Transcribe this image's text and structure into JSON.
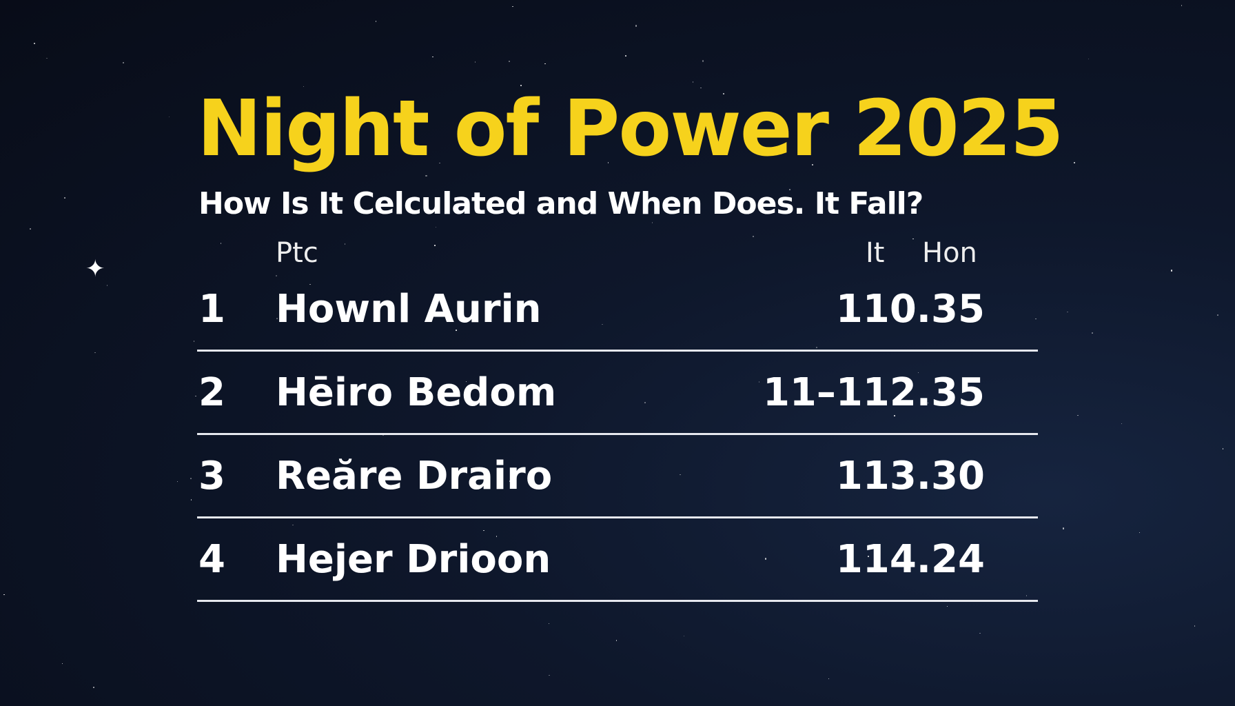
{
  "title": "Night of Power 2025",
  "subtitle": "How Is It Celculated and When Does. It Fall?",
  "table": {
    "headers": [
      "Ptc",
      "It",
      "Hon"
    ],
    "rows": [
      {
        "rank": "1",
        "name": "Hownl Aurin",
        "value": "110.35"
      },
      {
        "rank": "2",
        "name": "Hēiro Bedom",
        "value": "11–112.35"
      },
      {
        "rank": "3",
        "name": "Reăre Drairo",
        "value": "113.30"
      },
      {
        "rank": "4",
        "name": "Hejer Drioon",
        "value": "114.24"
      }
    ]
  },
  "colors": {
    "title": "#f6d21c",
    "background": "#0a0f1e",
    "text": "#ffffff"
  },
  "icons": [
    "sparkle-star-icon"
  ]
}
